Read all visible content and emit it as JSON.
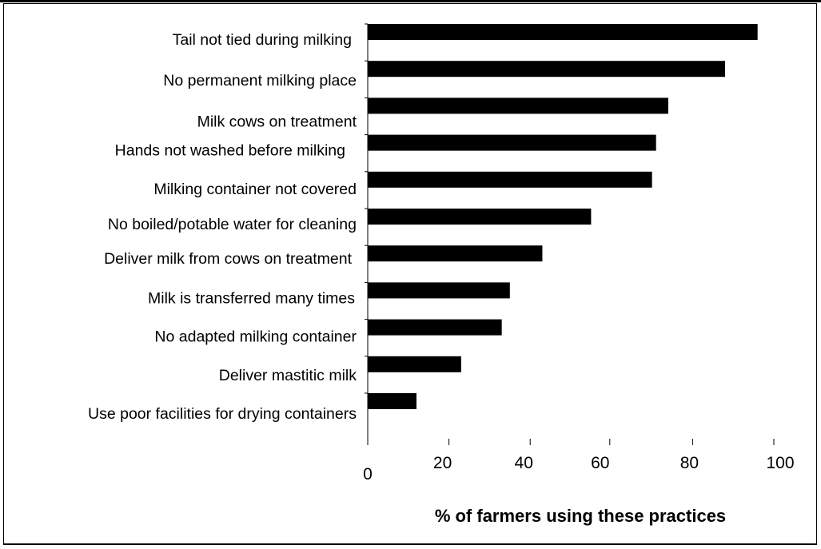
{
  "chart_data": {
    "type": "bar",
    "orientation": "horizontal",
    "categories": [
      "Tail not tied during milking",
      "No permanent milking place",
      "Milk cows on treatment",
      "Hands not washed before milking",
      "Milking container not covered",
      "No boiled/potable water for cleaning",
      "Deliver milk from cows on treatment",
      "Milk is transferred many times",
      "No adapted milking container",
      "Deliver mastitic milk",
      "Use poor facilities for drying containers"
    ],
    "values": [
      96,
      88,
      74,
      71,
      70,
      55,
      43,
      35,
      33,
      23,
      12
    ],
    "xlabel": "% of farmers using these practices",
    "xlim": [
      0,
      100
    ],
    "xticks": [
      "0",
      "20",
      "40",
      "60",
      "80",
      "100"
    ],
    "bar_color": "#000000",
    "grid": false,
    "legend": "none"
  }
}
